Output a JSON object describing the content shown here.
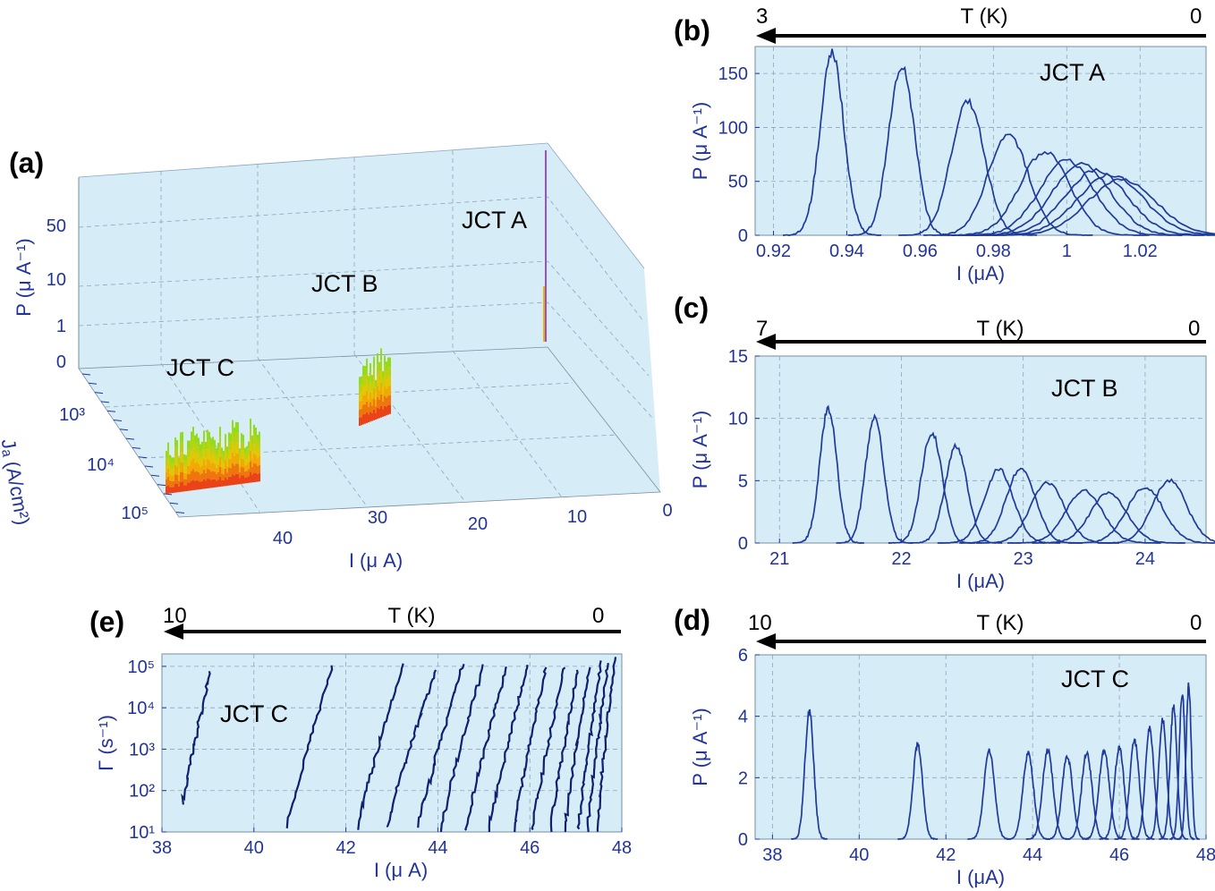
{
  "colors": {
    "plot_bg": "#d6ecf7",
    "axis_text": "#22349a",
    "curve": "#1f3a9a",
    "curve_e": "#0e2170",
    "heat_low": "#e8291b",
    "heat_mid": "#f5c200",
    "heat_high": "#7ee11f"
  },
  "chart_data": [
    {
      "id": "a",
      "panel_label": "(a)",
      "type": "heatmap",
      "title": "",
      "xlabel": "I (μ A)",
      "ylabel": "P (μ A⁻¹)",
      "zlabel": "Jₐ (A/cm²)",
      "xticks": [
        "40",
        "30",
        "20",
        "10",
        "0"
      ],
      "zticks": [
        "0",
        "1",
        "10",
        "50"
      ],
      "jticks": [
        "10³",
        "10⁴",
        "10⁵"
      ],
      "junctions": [
        {
          "name": "JCT A",
          "current_uA": 1.0,
          "jc": 1000
        },
        {
          "name": "JCT B",
          "current_uA": 23,
          "jc": 10000
        },
        {
          "name": "JCT C",
          "current_uA": 43,
          "jc": 100000
        }
      ]
    },
    {
      "id": "b",
      "panel_label": "(b)",
      "type": "line",
      "jct_label": "JCT A",
      "xlabel": "I (μA)",
      "ylabel": "P (μ A⁻¹)",
      "xlim": [
        0.915,
        1.038
      ],
      "ylim": [
        0,
        175
      ],
      "xticks": [
        0.92,
        0.94,
        0.96,
        0.98,
        1.0,
        1.02
      ],
      "xtick_labels": [
        "0.92",
        "0.94",
        "0.96",
        "0.98",
        "1",
        "1.02"
      ],
      "yticks": [
        0,
        50,
        100,
        150
      ],
      "ytick_labels": [
        "0",
        "50",
        "100",
        "150"
      ],
      "temp_arrow": {
        "label": "T (K)",
        "start": "3",
        "end": "0"
      },
      "series": [
        {
          "center": 0.936,
          "peak": 168,
          "width": 0.0032
        },
        {
          "center": 0.955,
          "peak": 158,
          "width": 0.0035
        },
        {
          "center": 0.973,
          "peak": 124,
          "width": 0.0045
        },
        {
          "center": 0.984,
          "peak": 94,
          "width": 0.0055
        },
        {
          "center": 0.994,
          "peak": 77,
          "width": 0.0068
        },
        {
          "center": 1.0,
          "peak": 69,
          "width": 0.0075
        },
        {
          "center": 1.004,
          "peak": 66,
          "width": 0.008
        },
        {
          "center": 1.008,
          "peak": 60,
          "width": 0.0085
        },
        {
          "center": 1.012,
          "peak": 56,
          "width": 0.009
        },
        {
          "center": 1.015,
          "peak": 52,
          "width": 0.0092
        }
      ]
    },
    {
      "id": "c",
      "panel_label": "(c)",
      "type": "line",
      "jct_label": "JCT B",
      "xlabel": "I (μA)",
      "ylabel": "P (μ A⁻¹)",
      "xlim": [
        20.8,
        24.5
      ],
      "ylim": [
        0,
        15
      ],
      "xticks": [
        21,
        22,
        23,
        24
      ],
      "xtick_labels": [
        "21",
        "22",
        "23",
        "24"
      ],
      "yticks": [
        0,
        5,
        10,
        15
      ],
      "ytick_labels": [
        "0",
        "5",
        "10",
        "15"
      ],
      "temp_arrow": {
        "label": "T (K)",
        "start": "7",
        "end": "0"
      },
      "series": [
        {
          "center": 21.4,
          "peak": 10.8,
          "width": 0.07
        },
        {
          "center": 21.78,
          "peak": 10.0,
          "width": 0.075
        },
        {
          "center": 22.25,
          "peak": 8.9,
          "width": 0.085
        },
        {
          "center": 22.45,
          "peak": 7.8,
          "width": 0.09
        },
        {
          "center": 22.8,
          "peak": 5.9,
          "width": 0.12
        },
        {
          "center": 22.98,
          "peak": 6.0,
          "width": 0.12
        },
        {
          "center": 23.2,
          "peak": 4.8,
          "width": 0.14
        },
        {
          "center": 23.5,
          "peak": 4.2,
          "width": 0.15
        },
        {
          "center": 23.7,
          "peak": 4.0,
          "width": 0.15
        },
        {
          "center": 24.0,
          "peak": 4.5,
          "width": 0.15
        },
        {
          "center": 24.2,
          "peak": 5.0,
          "width": 0.14
        }
      ]
    },
    {
      "id": "d",
      "panel_label": "(d)",
      "type": "line",
      "jct_label": "JCT C",
      "xlabel": "I (μA)",
      "ylabel": "P (μ A⁻¹)",
      "xlim": [
        37.6,
        48.0
      ],
      "ylim": [
        0,
        6
      ],
      "xticks": [
        38,
        40,
        42,
        44,
        46,
        48
      ],
      "xtick_labels": [
        "38",
        "40",
        "42",
        "44",
        "46",
        "48"
      ],
      "yticks": [
        0,
        2,
        4,
        6
      ],
      "ytick_labels": [
        "0",
        "2",
        "4",
        "6"
      ],
      "temp_arrow": {
        "label": "T (K)",
        "start": "10",
        "end": "0"
      },
      "series": [
        {
          "center": 38.85,
          "peak": 4.2,
          "width": 0.1
        },
        {
          "center": 41.35,
          "peak": 3.1,
          "width": 0.11
        },
        {
          "center": 43.0,
          "peak": 2.9,
          "width": 0.12
        },
        {
          "center": 43.9,
          "peak": 2.8,
          "width": 0.12
        },
        {
          "center": 44.35,
          "peak": 2.9,
          "width": 0.12
        },
        {
          "center": 44.8,
          "peak": 2.7,
          "width": 0.12
        },
        {
          "center": 45.25,
          "peak": 2.8,
          "width": 0.12
        },
        {
          "center": 45.65,
          "peak": 2.9,
          "width": 0.12
        },
        {
          "center": 46.0,
          "peak": 3.0,
          "width": 0.11
        },
        {
          "center": 46.35,
          "peak": 3.2,
          "width": 0.11
        },
        {
          "center": 46.7,
          "peak": 3.6,
          "width": 0.1
        },
        {
          "center": 47.0,
          "peak": 3.9,
          "width": 0.09
        },
        {
          "center": 47.25,
          "peak": 4.3,
          "width": 0.08
        },
        {
          "center": 47.45,
          "peak": 4.7,
          "width": 0.07
        },
        {
          "center": 47.6,
          "peak": 5.0,
          "width": 0.06
        }
      ]
    },
    {
      "id": "e",
      "panel_label": "(e)",
      "type": "line",
      "jct_label": "JCT C",
      "xlabel": "I (μ A)",
      "ylabel": "Γ (s⁻¹)",
      "xlim": [
        38,
        48
      ],
      "ylim_log10": [
        1,
        5.3
      ],
      "xticks": [
        38,
        40,
        42,
        44,
        46,
        48
      ],
      "xtick_labels": [
        "38",
        "40",
        "42",
        "44",
        "46",
        "48"
      ],
      "yticks_log10": [
        1,
        2,
        3,
        4,
        5
      ],
      "ytick_labels": [
        "10¹",
        "10²",
        "10³",
        "10⁴",
        "10⁵"
      ],
      "temp_arrow": {
        "label": "T (K)",
        "start": "10",
        "end": "0"
      },
      "series": [
        {
          "x0": 38.45,
          "x1": 39.05,
          "y0_log10": 1.65,
          "y1_log10": 4.85
        },
        {
          "x0": 40.7,
          "x1": 41.7,
          "y0_log10": 1.0,
          "y1_log10": 5.0
        },
        {
          "x0": 42.25,
          "x1": 43.25,
          "y0_log10": 1.1,
          "y1_log10": 5.05
        },
        {
          "x0": 42.9,
          "x1": 43.95,
          "y0_log10": 1.1,
          "y1_log10": 4.9
        },
        {
          "x0": 43.55,
          "x1": 44.55,
          "y0_log10": 1.0,
          "y1_log10": 5.05
        },
        {
          "x0": 44.05,
          "x1": 45.0,
          "y0_log10": 1.0,
          "y1_log10": 5.05
        },
        {
          "x0": 44.6,
          "x1": 45.5,
          "y0_log10": 1.0,
          "y1_log10": 5.0
        },
        {
          "x0": 45.1,
          "x1": 45.95,
          "y0_log10": 1.0,
          "y1_log10": 5.05
        },
        {
          "x0": 45.65,
          "x1": 46.35,
          "y0_log10": 1.0,
          "y1_log10": 5.0
        },
        {
          "x0": 46.05,
          "x1": 46.75,
          "y0_log10": 1.0,
          "y1_log10": 5.0
        },
        {
          "x0": 46.45,
          "x1": 47.05,
          "y0_log10": 1.0,
          "y1_log10": 4.95
        },
        {
          "x0": 46.75,
          "x1": 47.3,
          "y0_log10": 1.0,
          "y1_log10": 5.0
        },
        {
          "x0": 47.05,
          "x1": 47.55,
          "y0_log10": 1.0,
          "y1_log10": 5.1
        },
        {
          "x0": 47.25,
          "x1": 47.7,
          "y0_log10": 1.0,
          "y1_log10": 5.05
        },
        {
          "x0": 47.45,
          "x1": 47.85,
          "y0_log10": 1.0,
          "y1_log10": 5.2
        }
      ]
    }
  ]
}
